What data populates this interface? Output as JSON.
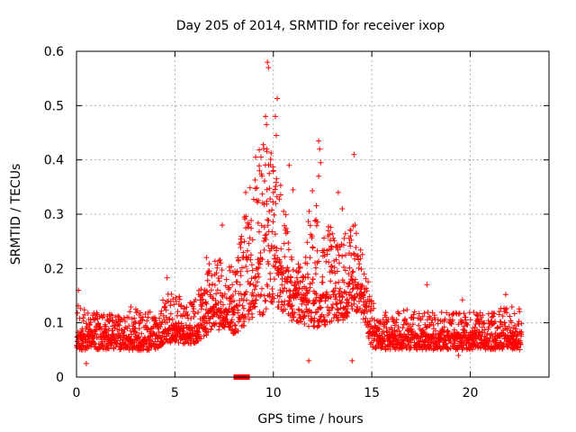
{
  "chart_data": {
    "type": "scatter",
    "title": "Day 205 of 2014, SRMTID for receiver ixop",
    "xlabel": "GPS time / hours",
    "ylabel": "SRMTID / TECUs",
    "xlim": [
      0,
      24
    ],
    "ylim": [
      0,
      0.6
    ],
    "xticks": [
      0,
      5,
      10,
      15,
      20
    ],
    "yticks": [
      0,
      0.1,
      0.2,
      0.3,
      0.4,
      0.5,
      0.6
    ],
    "xtick_labels": [
      "0",
      "5",
      "10",
      "15",
      "20"
    ],
    "ytick_labels": [
      "0",
      "0.1",
      "0.2",
      "0.3",
      "0.4",
      "0.5",
      "0.6"
    ],
    "grid": true,
    "marker": "+",
    "color": "#ff0000",
    "series": [
      {
        "name": "SRMTID",
        "envelope": {
          "x": [
            0,
            0.5,
            1,
            1.5,
            2,
            2.5,
            3,
            3.5,
            4,
            4.5,
            5,
            5.5,
            6,
            6.5,
            7,
            7.5,
            8,
            8.5,
            9,
            9.5,
            10,
            10.5,
            11,
            11.5,
            12,
            12.5,
            13,
            13.5,
            14,
            14.5,
            15,
            15.5,
            16,
            16.5,
            17,
            17.5,
            18,
            18.5,
            19,
            19.5,
            20,
            20.5,
            21,
            21.5,
            22,
            22.5
          ],
          "low": [
            0.04,
            0.04,
            0.04,
            0.04,
            0.04,
            0.04,
            0.04,
            0.04,
            0.04,
            0.05,
            0.05,
            0.05,
            0.05,
            0.06,
            0.07,
            0.07,
            0.06,
            0.07,
            0.08,
            0.07,
            0.09,
            0.09,
            0.08,
            0.08,
            0.06,
            0.07,
            0.08,
            0.08,
            0.09,
            0.09,
            0.04,
            0.04,
            0.04,
            0.04,
            0.04,
            0.04,
            0.04,
            0.04,
            0.04,
            0.04,
            0.04,
            0.04,
            0.04,
            0.04,
            0.04,
            0.04
          ],
          "high": [
            0.14,
            0.12,
            0.12,
            0.12,
            0.12,
            0.13,
            0.13,
            0.12,
            0.12,
            0.15,
            0.16,
            0.14,
            0.15,
            0.2,
            0.22,
            0.22,
            0.2,
            0.3,
            0.38,
            0.45,
            0.45,
            0.33,
            0.22,
            0.2,
            0.38,
            0.25,
            0.3,
            0.25,
            0.3,
            0.25,
            0.14,
            0.12,
            0.12,
            0.12,
            0.13,
            0.12,
            0.12,
            0.12,
            0.12,
            0.12,
            0.12,
            0.12,
            0.12,
            0.13,
            0.13,
            0.13
          ],
          "median": [
            0.075,
            0.075,
            0.075,
            0.075,
            0.075,
            0.075,
            0.07,
            0.07,
            0.075,
            0.085,
            0.09,
            0.085,
            0.09,
            0.11,
            0.13,
            0.12,
            0.12,
            0.15,
            0.18,
            0.22,
            0.24,
            0.19,
            0.15,
            0.14,
            0.16,
            0.14,
            0.16,
            0.15,
            0.18,
            0.17,
            0.08,
            0.075,
            0.075,
            0.075,
            0.075,
            0.075,
            0.075,
            0.07,
            0.075,
            0.075,
            0.075,
            0.075,
            0.075,
            0.075,
            0.075,
            0.075
          ]
        },
        "peaks": [
          {
            "x": 9.7,
            "y": 0.58
          },
          {
            "x": 9.75,
            "y": 0.57
          },
          {
            "x": 10.2,
            "y": 0.513
          },
          {
            "x": 10.1,
            "y": 0.48
          },
          {
            "x": 10.15,
            "y": 0.445
          },
          {
            "x": 9.6,
            "y": 0.48
          },
          {
            "x": 9.65,
            "y": 0.465
          },
          {
            "x": 12.3,
            "y": 0.435
          },
          {
            "x": 12.35,
            "y": 0.42
          },
          {
            "x": 14.1,
            "y": 0.41
          },
          {
            "x": 9.1,
            "y": 0.405
          },
          {
            "x": 12.4,
            "y": 0.395
          },
          {
            "x": 10.8,
            "y": 0.39
          },
          {
            "x": 9.3,
            "y": 0.38
          },
          {
            "x": 12.3,
            "y": 0.37
          },
          {
            "x": 13.3,
            "y": 0.34
          },
          {
            "x": 11.0,
            "y": 0.345
          },
          {
            "x": 10.0,
            "y": 0.34
          },
          {
            "x": 8.6,
            "y": 0.34
          },
          {
            "x": 13.5,
            "y": 0.31
          },
          {
            "x": 7.4,
            "y": 0.28
          },
          {
            "x": 8.2,
            "y": 0.22
          },
          {
            "x": 6.6,
            "y": 0.22
          },
          {
            "x": 4.6,
            "y": 0.183
          },
          {
            "x": 17.8,
            "y": 0.17
          },
          {
            "x": 21.8,
            "y": 0.152
          },
          {
            "x": 0.1,
            "y": 0.16
          },
          {
            "x": 19.6,
            "y": 0.142
          },
          {
            "x": 0.5,
            "y": 0.025
          },
          {
            "x": 14.0,
            "y": 0.03
          },
          {
            "x": 11.8,
            "y": 0.03
          },
          {
            "x": 19.4,
            "y": 0.04
          }
        ],
        "near_zero_cluster": {
          "x_start": 8.0,
          "x_end": 8.8,
          "y": 0.0
        }
      }
    ]
  }
}
